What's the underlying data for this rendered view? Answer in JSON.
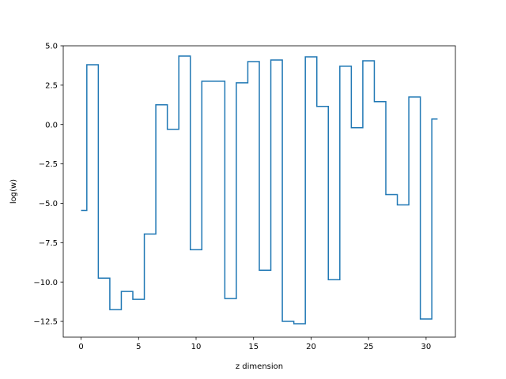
{
  "chart_data": {
    "type": "line",
    "drawstyle": "steps-mid",
    "xlabel": "z dimension",
    "ylabel": "log(w)",
    "xlim": [
      -1.55,
      32.55
    ],
    "ylim": [
      -13.5,
      5.0
    ],
    "xticks": [
      0,
      5,
      10,
      15,
      20,
      25,
      30
    ],
    "yticks": [
      5.0,
      2.5,
      0.0,
      -2.5,
      -5.0,
      -7.5,
      -10.0,
      -12.5
    ],
    "ytick_labels": [
      "5.0",
      "2.5",
      "0.0",
      "−2.5",
      "−5.0",
      "−7.5",
      "−10.0",
      "−12.5"
    ],
    "grid": false,
    "series": [
      {
        "color": "#1f77b4",
        "x": [
          0,
          1,
          2,
          3,
          4,
          5,
          6,
          7,
          8,
          9,
          10,
          11,
          12,
          13,
          14,
          15,
          16,
          17,
          18,
          19,
          20,
          21,
          22,
          23,
          24,
          25,
          26,
          27,
          28,
          29,
          30,
          31
        ],
        "y": [
          -5.45,
          3.8,
          -9.75,
          -11.75,
          -10.6,
          -11.1,
          -6.95,
          1.25,
          -0.3,
          4.35,
          -7.95,
          2.75,
          2.75,
          -11.05,
          2.65,
          4.0,
          -9.25,
          4.1,
          -12.5,
          -12.65,
          4.3,
          1.15,
          -9.85,
          3.7,
          -0.2,
          4.05,
          1.45,
          -4.45,
          -5.1,
          1.75,
          -12.35,
          0.35
        ]
      }
    ]
  }
}
